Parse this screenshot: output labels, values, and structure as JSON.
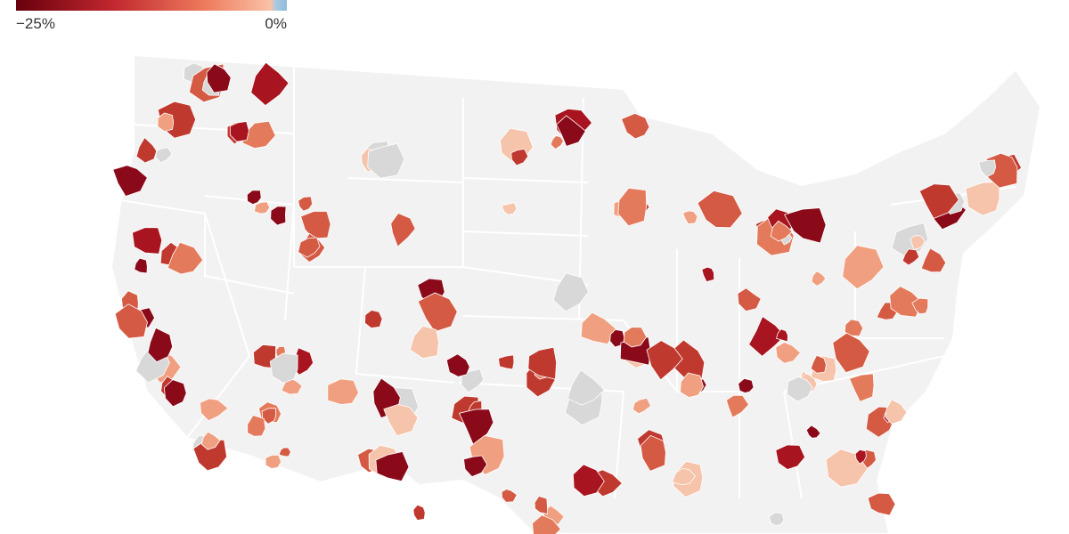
{
  "legend": {
    "min_label": "−25%",
    "max_label": "0%"
  }
}
